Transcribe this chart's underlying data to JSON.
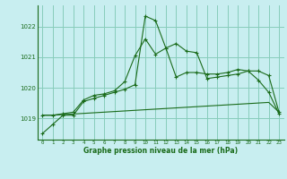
{
  "title": "Graphe pression niveau de la mer (hPa)",
  "background_color": "#c8eef0",
  "grid_color": "#88ccbb",
  "line_color": "#1a6b1a",
  "x_labels": [
    "0",
    "1",
    "2",
    "3",
    "4",
    "5",
    "6",
    "7",
    "8",
    "9",
    "10",
    "11",
    "12",
    "13",
    "14",
    "15",
    "16",
    "17",
    "18",
    "19",
    "20",
    "21",
    "22",
    "23"
  ],
  "ylim": [
    1018.3,
    1022.7
  ],
  "yticks": [
    1019,
    1020,
    1021,
    1022
  ],
  "series1": [
    1018.5,
    1018.8,
    1019.1,
    1019.1,
    1019.55,
    1019.65,
    1019.75,
    1019.85,
    1019.95,
    1020.1,
    1022.35,
    1022.2,
    1021.3,
    1021.45,
    1021.2,
    1021.15,
    1020.3,
    1020.35,
    1020.4,
    1020.45,
    1020.55,
    1020.55,
    1020.4,
    1019.2
  ],
  "series2": [
    1019.1,
    1019.1,
    1019.15,
    1019.2,
    1019.6,
    1019.75,
    1019.8,
    1019.9,
    1020.2,
    1021.05,
    1021.6,
    1021.1,
    1021.3,
    1020.35,
    1020.5,
    1020.5,
    1020.45,
    1020.45,
    1020.5,
    1020.6,
    1020.55,
    1020.25,
    1019.85,
    1019.15
  ],
  "series3": [
    1019.1,
    1019.1,
    1019.12,
    1019.14,
    1019.16,
    1019.18,
    1019.2,
    1019.22,
    1019.24,
    1019.26,
    1019.28,
    1019.3,
    1019.32,
    1019.34,
    1019.36,
    1019.38,
    1019.4,
    1019.42,
    1019.44,
    1019.46,
    1019.48,
    1019.5,
    1019.52,
    1019.2
  ]
}
